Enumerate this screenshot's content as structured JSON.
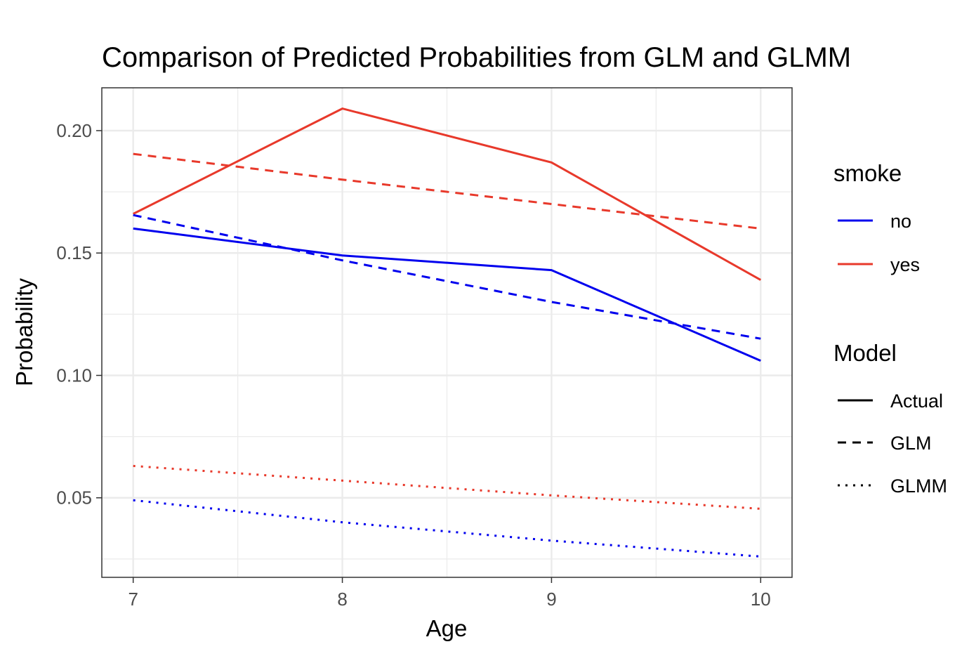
{
  "chart_data": {
    "type": "line",
    "title": "Comparison of Predicted Probabilities from GLM and GLMM",
    "xlabel": "Age",
    "ylabel": "Probability",
    "x": [
      7,
      8,
      9,
      10
    ],
    "xlim": [
      6.85,
      10.15
    ],
    "ylim": [
      0.0175,
      0.2175
    ],
    "x_ticks": [
      "7",
      "8",
      "9",
      "10"
    ],
    "y_ticks": [
      "0.05",
      "0.10",
      "0.15",
      "0.20"
    ],
    "grid": true,
    "legend_position": "right",
    "series": [
      {
        "smoke": "no",
        "model": "Actual",
        "values": [
          0.16,
          0.149,
          0.143,
          0.106
        ]
      },
      {
        "smoke": "yes",
        "model": "Actual",
        "values": [
          0.166,
          0.209,
          0.187,
          0.139
        ]
      },
      {
        "smoke": "no",
        "model": "GLM",
        "values": [
          0.1655,
          0.147,
          0.13,
          0.115
        ]
      },
      {
        "smoke": "yes",
        "model": "GLM",
        "values": [
          0.1905,
          0.18,
          0.17,
          0.16
        ]
      },
      {
        "smoke": "no",
        "model": "GLMM",
        "values": [
          0.049,
          0.04,
          0.0325,
          0.026
        ]
      },
      {
        "smoke": "yes",
        "model": "GLMM",
        "values": [
          0.063,
          0.057,
          0.051,
          0.0455
        ]
      }
    ],
    "colors": {
      "no": "#0000ee",
      "yes": "#e8392b"
    },
    "line_styles": {
      "Actual": "solid",
      "GLM": "dashed",
      "GLMM": "dotted"
    }
  },
  "legend": {
    "smoke_title": "smoke",
    "smoke_items": [
      "no",
      "yes"
    ],
    "model_title": "Model",
    "model_items": [
      "Actual",
      "GLM",
      "GLMM"
    ]
  }
}
